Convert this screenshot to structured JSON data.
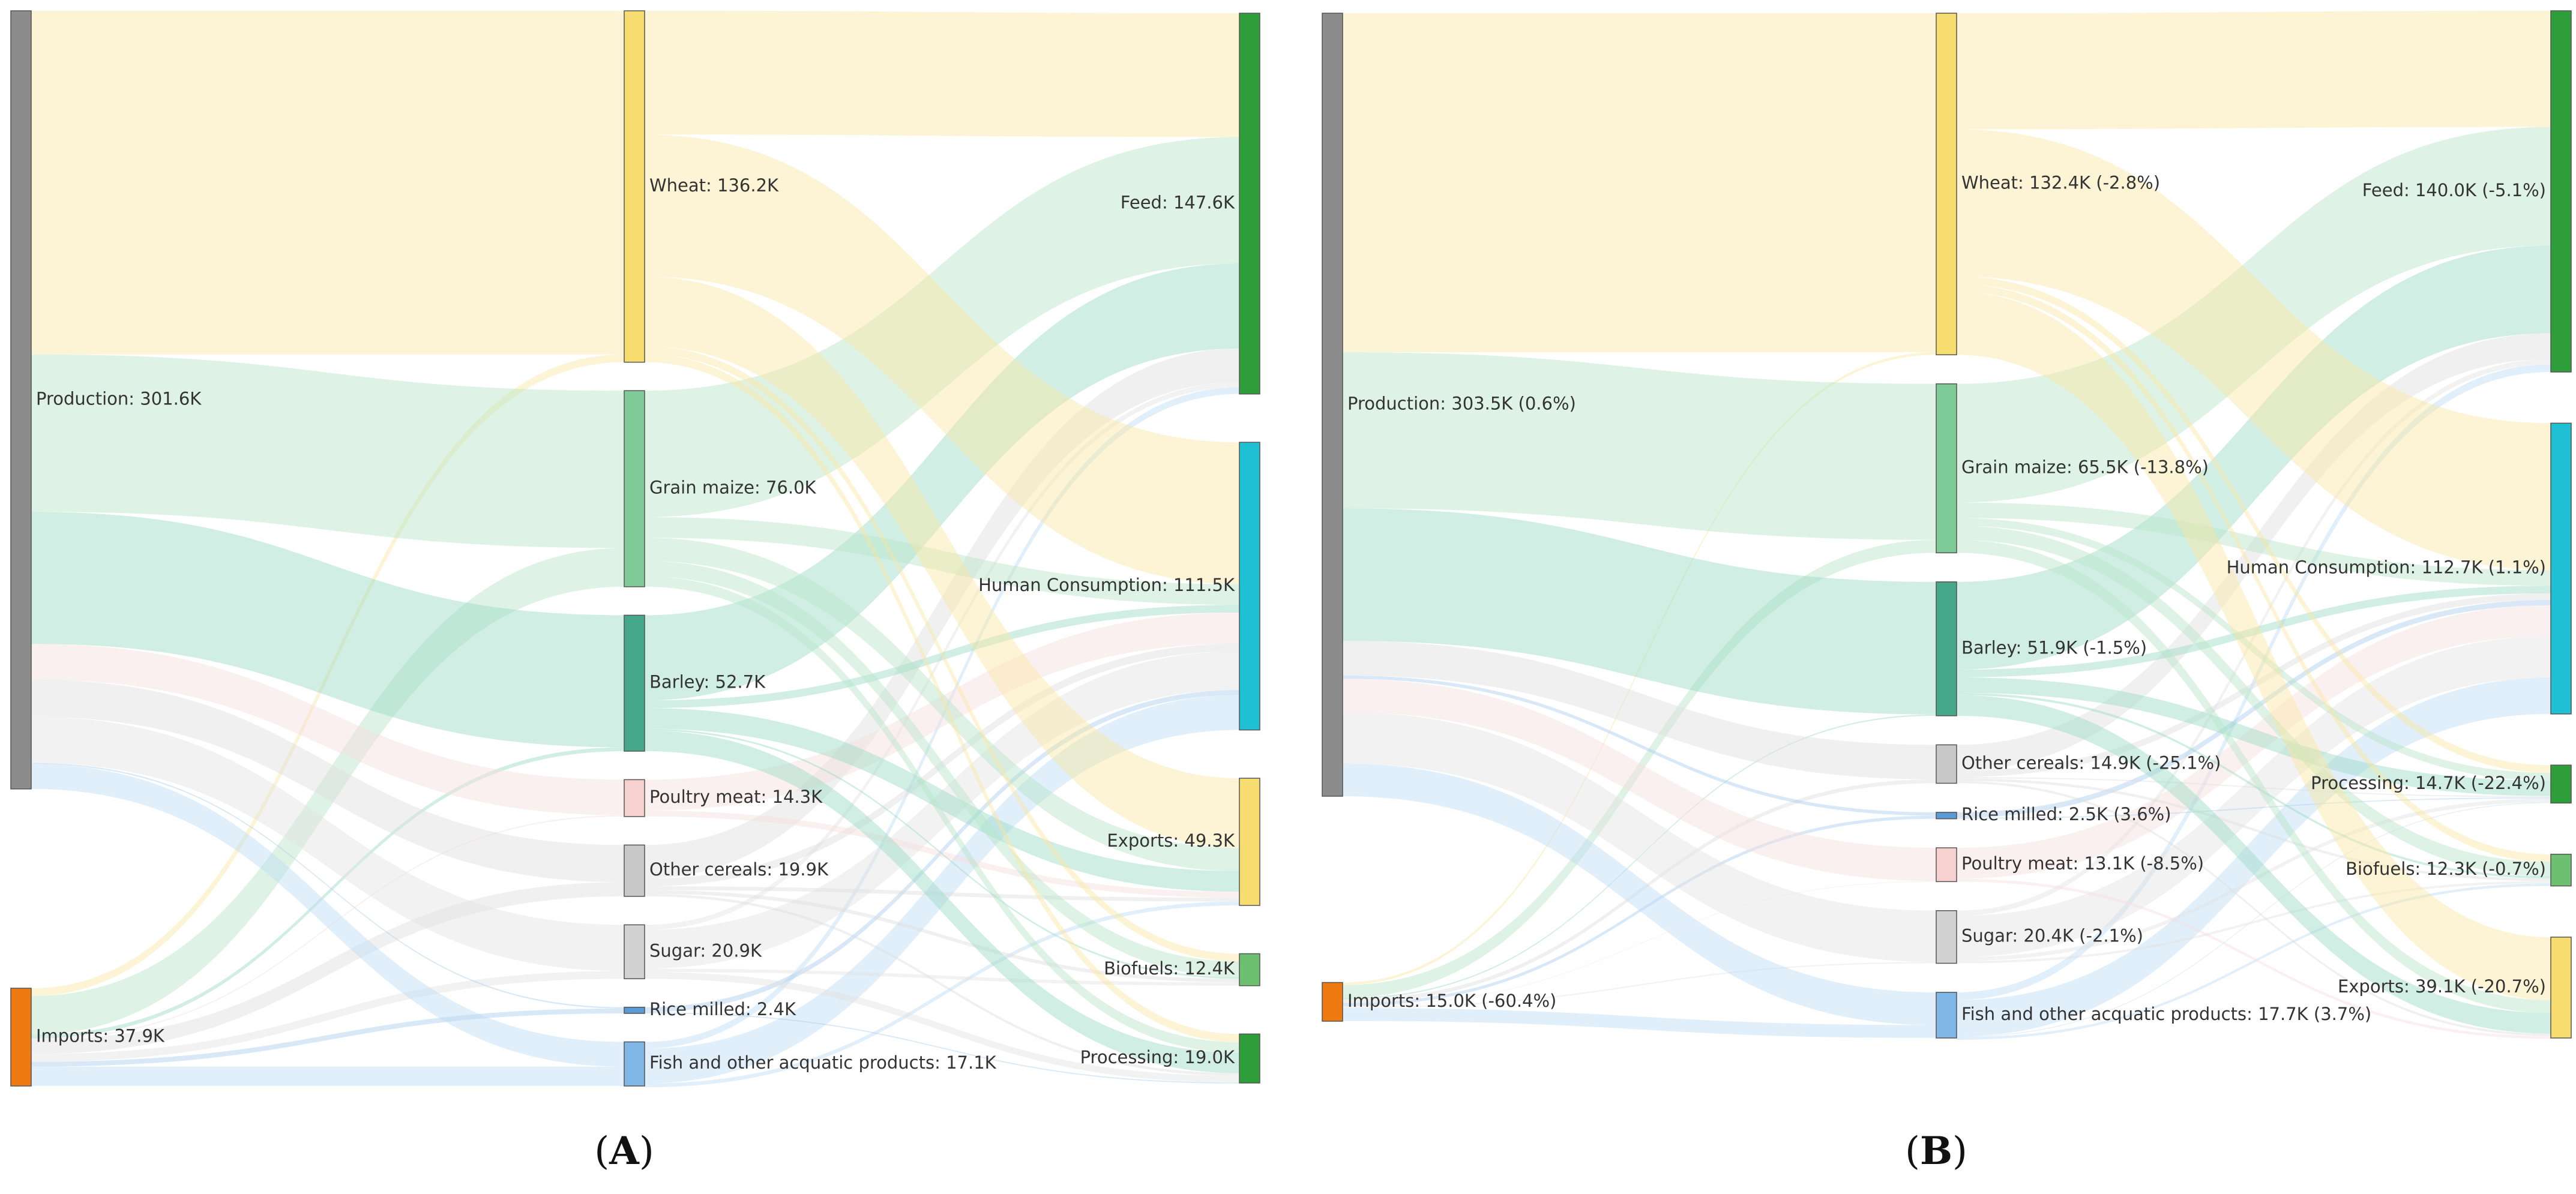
{
  "chart_data": [
    {
      "type": "sankey",
      "panel": "A",
      "caption_open": "(",
      "caption_letter": "A",
      "caption_close": ")",
      "sources": [
        {
          "id": "production",
          "label": "Production: 301.6K",
          "value": 301.6,
          "color": "#8c8c8c"
        },
        {
          "id": "imports",
          "label": "Imports: 37.9K",
          "value": 37.9,
          "color": "#f07a12"
        }
      ],
      "commodities": [
        {
          "id": "wheat",
          "label": "Wheat: 136.2K",
          "value": 136.2,
          "color": "#f7dc6f",
          "link_color": "#f9e7a0"
        },
        {
          "id": "maize",
          "label": "Grain maize: 76.0K",
          "value": 76.0,
          "color": "#7ecb98",
          "link_color": "#b5e4c6"
        },
        {
          "id": "barley",
          "label": "Barley: 52.7K",
          "value": 52.7,
          "color": "#45a88a",
          "link_color": "#99d9c6"
        },
        {
          "id": "poultry",
          "label": "Poultry meat: 14.3K",
          "value": 14.3,
          "color": "#f7d0d0",
          "link_color": "#f6dede"
        },
        {
          "id": "othercereals",
          "label": "Other cereals: 19.9K",
          "value": 19.9,
          "color": "#c8c8c8",
          "link_color": "#dedede"
        },
        {
          "id": "sugar",
          "label": "Sugar: 20.9K",
          "value": 20.9,
          "color": "#d2d2d2",
          "link_color": "#e2e2e2"
        },
        {
          "id": "rice",
          "label": "Rice milled: 2.4K",
          "value": 2.4,
          "color": "#5b9bd5",
          "link_color": "#a9cdee"
        },
        {
          "id": "fish",
          "label": "Fish and other acquatic products: 17.1K",
          "value": 17.1,
          "color": "#7fb8e8",
          "link_color": "#bcdcf5"
        }
      ],
      "uses": [
        {
          "id": "feed",
          "label": "Feed: 147.6K",
          "value": 147.6,
          "color": "#2e9e3a"
        },
        {
          "id": "human",
          "label": "Human Consumption: 111.5K",
          "value": 111.5,
          "color": "#1fbfd4"
        },
        {
          "id": "exports",
          "label": "Exports: 49.3K",
          "value": 49.3,
          "color": "#f7dc6f"
        },
        {
          "id": "biofuels",
          "label": "Biofuels: 12.4K",
          "value": 12.4,
          "color": "#6cc070"
        },
        {
          "id": "processing",
          "label": "Processing: 19.0K",
          "value": 19.0,
          "color": "#2e9e3a"
        }
      ],
      "links_source_to_commodity": [
        {
          "from": "production",
          "to": "wheat",
          "value": 133.2
        },
        {
          "from": "production",
          "to": "maize",
          "value": 61.0
        },
        {
          "from": "production",
          "to": "barley",
          "value": 51.2
        },
        {
          "from": "production",
          "to": "poultry",
          "value": 13.8
        },
        {
          "from": "production",
          "to": "othercereals",
          "value": 14.4
        },
        {
          "from": "production",
          "to": "sugar",
          "value": 17.9
        },
        {
          "from": "production",
          "to": "rice",
          "value": 0.5
        },
        {
          "from": "production",
          "to": "fish",
          "value": 9.6
        },
        {
          "from": "imports",
          "to": "wheat",
          "value": 3.0
        },
        {
          "from": "imports",
          "to": "maize",
          "value": 15.0
        },
        {
          "from": "imports",
          "to": "barley",
          "value": 1.5
        },
        {
          "from": "imports",
          "to": "poultry",
          "value": 0.5
        },
        {
          "from": "imports",
          "to": "othercereals",
          "value": 5.5
        },
        {
          "from": "imports",
          "to": "sugar",
          "value": 3.0
        },
        {
          "from": "imports",
          "to": "rice",
          "value": 1.9
        },
        {
          "from": "imports",
          "to": "fish",
          "value": 7.5
        }
      ],
      "links_commodity_to_use": [
        {
          "from": "wheat",
          "to": "feed",
          "value": 48.0
        },
        {
          "from": "wheat",
          "to": "human",
          "value": 55.0
        },
        {
          "from": "wheat",
          "to": "exports",
          "value": 27.0
        },
        {
          "from": "wheat",
          "to": "biofuels",
          "value": 3.0
        },
        {
          "from": "wheat",
          "to": "processing",
          "value": 3.2
        },
        {
          "from": "maize",
          "to": "feed",
          "value": 49.0
        },
        {
          "from": "maize",
          "to": "human",
          "value": 8.0
        },
        {
          "from": "maize",
          "to": "exports",
          "value": 9.0
        },
        {
          "from": "maize",
          "to": "biofuels",
          "value": 6.0
        },
        {
          "from": "maize",
          "to": "processing",
          "value": 4.0
        },
        {
          "from": "barley",
          "to": "feed",
          "value": 33.0
        },
        {
          "from": "barley",
          "to": "human",
          "value": 3.0
        },
        {
          "from": "barley",
          "to": "exports",
          "value": 8.0
        },
        {
          "from": "barley",
          "to": "biofuels",
          "value": 0.7
        },
        {
          "from": "barley",
          "to": "processing",
          "value": 8.0
        },
        {
          "from": "poultry",
          "to": "human",
          "value": 12.0
        },
        {
          "from": "poultry",
          "to": "exports",
          "value": 2.3
        },
        {
          "from": "othercereals",
          "to": "feed",
          "value": 13.0
        },
        {
          "from": "othercereals",
          "to": "human",
          "value": 3.0
        },
        {
          "from": "othercereals",
          "to": "exports",
          "value": 1.5
        },
        {
          "from": "othercereals",
          "to": "biofuels",
          "value": 1.4
        },
        {
          "from": "othercereals",
          "to": "processing",
          "value": 1.0
        },
        {
          "from": "sugar",
          "to": "feed",
          "value": 2.0
        },
        {
          "from": "sugar",
          "to": "human",
          "value": 15.0
        },
        {
          "from": "sugar",
          "to": "biofuels",
          "value": 1.3
        },
        {
          "from": "sugar",
          "to": "processing",
          "value": 2.6
        },
        {
          "from": "rice",
          "to": "human",
          "value": 2.0
        },
        {
          "from": "rice",
          "to": "processing",
          "value": 0.4
        },
        {
          "from": "fish",
          "to": "feed",
          "value": 2.6
        },
        {
          "from": "fish",
          "to": "human",
          "value": 13.5
        },
        {
          "from": "fish",
          "to": "exports",
          "value": 1.5
        }
      ]
    },
    {
      "type": "sankey",
      "panel": "B",
      "caption_open": "(",
      "caption_letter": "B",
      "caption_close": ")",
      "sources": [
        {
          "id": "production",
          "label": "Production: 303.5K (0.6%)",
          "value": 303.5,
          "color": "#8c8c8c"
        },
        {
          "id": "imports",
          "label": "Imports: 15.0K (-60.4%)",
          "value": 15.0,
          "color": "#f07a12"
        }
      ],
      "commodities": [
        {
          "id": "wheat",
          "label": "Wheat: 132.4K (-2.8%)",
          "value": 132.4,
          "color": "#f7dc6f",
          "link_color": "#f9e7a0"
        },
        {
          "id": "maize",
          "label": "Grain maize: 65.5K (-13.8%)",
          "value": 65.5,
          "color": "#7ecb98",
          "link_color": "#b5e4c6"
        },
        {
          "id": "barley",
          "label": "Barley: 51.9K (-1.5%)",
          "value": 51.9,
          "color": "#45a88a",
          "link_color": "#99d9c6"
        },
        {
          "id": "othercereals",
          "label": "Other cereals: 14.9K (-25.1%)",
          "value": 14.9,
          "color": "#c8c8c8",
          "link_color": "#dedede"
        },
        {
          "id": "rice",
          "label": "Rice milled: 2.5K (3.6%)",
          "value": 2.5,
          "color": "#5b9bd5",
          "link_color": "#a9cdee"
        },
        {
          "id": "poultry",
          "label": "Poultry meat: 13.1K (-8.5%)",
          "value": 13.1,
          "color": "#f7d0d0",
          "link_color": "#f6dede"
        },
        {
          "id": "sugar",
          "label": "Sugar: 20.4K (-2.1%)",
          "value": 20.4,
          "color": "#d2d2d2",
          "link_color": "#e2e2e2"
        },
        {
          "id": "fish",
          "label": "Fish and other acquatic products: 17.7K (3.7%)",
          "value": 17.7,
          "color": "#7fb8e8",
          "link_color": "#bcdcf5"
        }
      ],
      "uses": [
        {
          "id": "feed",
          "label": "Feed: 140.0K (-5.1%)",
          "value": 140.0,
          "color": "#2e9e3a"
        },
        {
          "id": "human",
          "label": "Human Consumption: 112.7K (1.1%)",
          "value": 112.7,
          "color": "#1fbfd4"
        },
        {
          "id": "processing",
          "label": "Processing: 14.7K (-22.4%)",
          "value": 14.7,
          "color": "#2e9e3a"
        },
        {
          "id": "biofuels",
          "label": "Biofuels: 12.3K (-0.7%)",
          "value": 12.3,
          "color": "#6cc070"
        },
        {
          "id": "exports",
          "label": "Exports: 39.1K (-20.7%)",
          "value": 39.1,
          "color": "#f7dc6f"
        }
      ],
      "links_source_to_commodity": [
        {
          "from": "production",
          "to": "wheat",
          "value": 131.4
        },
        {
          "from": "production",
          "to": "maize",
          "value": 60.5
        },
        {
          "from": "production",
          "to": "barley",
          "value": 51.4
        },
        {
          "from": "production",
          "to": "othercereals",
          "value": 13.4
        },
        {
          "from": "production",
          "to": "rice",
          "value": 1.3
        },
        {
          "from": "production",
          "to": "poultry",
          "value": 12.9
        },
        {
          "from": "production",
          "to": "sugar",
          "value": 19.9
        },
        {
          "from": "production",
          "to": "fish",
          "value": 12.7
        },
        {
          "from": "imports",
          "to": "wheat",
          "value": 1.0
        },
        {
          "from": "imports",
          "to": "maize",
          "value": 5.0
        },
        {
          "from": "imports",
          "to": "barley",
          "value": 0.5
        },
        {
          "from": "imports",
          "to": "othercereals",
          "value": 1.5
        },
        {
          "from": "imports",
          "to": "rice",
          "value": 1.2
        },
        {
          "from": "imports",
          "to": "poultry",
          "value": 0.2
        },
        {
          "from": "imports",
          "to": "sugar",
          "value": 0.5
        },
        {
          "from": "imports",
          "to": "fish",
          "value": 5.0
        }
      ],
      "links_commodity_to_use": [
        {
          "from": "wheat",
          "to": "feed",
          "value": 45.0
        },
        {
          "from": "wheat",
          "to": "human",
          "value": 57.0
        },
        {
          "from": "wheat",
          "to": "processing",
          "value": 3.0
        },
        {
          "from": "wheat",
          "to": "biofuels",
          "value": 3.0
        },
        {
          "from": "wheat",
          "to": "exports",
          "value": 24.4
        },
        {
          "from": "maize",
          "to": "feed",
          "value": 46.0
        },
        {
          "from": "maize",
          "to": "human",
          "value": 6.0
        },
        {
          "from": "maize",
          "to": "processing",
          "value": 3.0
        },
        {
          "from": "maize",
          "to": "biofuels",
          "value": 5.5
        },
        {
          "from": "maize",
          "to": "exports",
          "value": 5.0
        },
        {
          "from": "barley",
          "to": "feed",
          "value": 34.0
        },
        {
          "from": "barley",
          "to": "human",
          "value": 3.0
        },
        {
          "from": "barley",
          "to": "processing",
          "value": 6.0
        },
        {
          "from": "barley",
          "to": "biofuels",
          "value": 0.9
        },
        {
          "from": "barley",
          "to": "exports",
          "value": 8.0
        },
        {
          "from": "othercereals",
          "to": "feed",
          "value": 10.0
        },
        {
          "from": "othercereals",
          "to": "human",
          "value": 2.5
        },
        {
          "from": "othercereals",
          "to": "processing",
          "value": 0.5
        },
        {
          "from": "othercereals",
          "to": "biofuels",
          "value": 1.0
        },
        {
          "from": "othercereals",
          "to": "exports",
          "value": 0.9
        },
        {
          "from": "rice",
          "to": "human",
          "value": 2.1
        },
        {
          "from": "rice",
          "to": "processing",
          "value": 0.4
        },
        {
          "from": "poultry",
          "to": "human",
          "value": 12.0
        },
        {
          "from": "poultry",
          "to": "exports",
          "value": 1.1
        },
        {
          "from": "sugar",
          "to": "feed",
          "value": 2.0
        },
        {
          "from": "sugar",
          "to": "human",
          "value": 16.0
        },
        {
          "from": "sugar",
          "to": "processing",
          "value": 1.5
        },
        {
          "from": "sugar",
          "to": "biofuels",
          "value": 0.9
        },
        {
          "from": "fish",
          "to": "feed",
          "value": 3.0
        },
        {
          "from": "fish",
          "to": "human",
          "value": 14.1
        },
        {
          "from": "fish",
          "to": "processing",
          "value": 0.3
        },
        {
          "from": "fish",
          "to": "biofuels",
          "value": 1.0
        }
      ]
    }
  ]
}
